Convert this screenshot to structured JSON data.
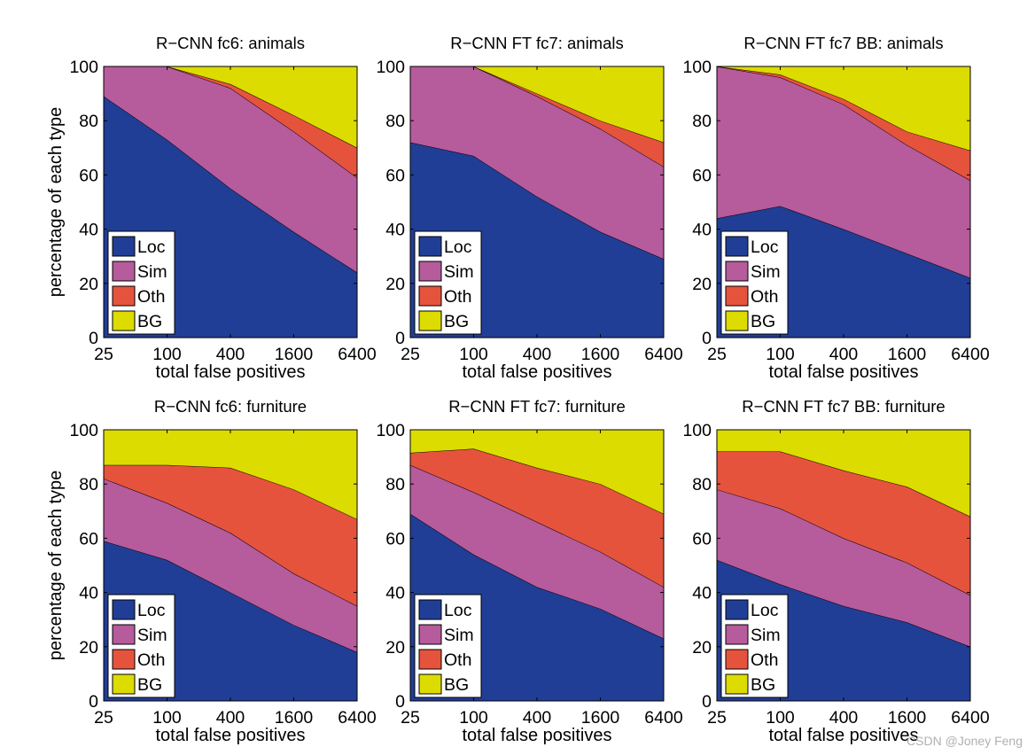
{
  "colors": {
    "Loc": "#213e96",
    "Sim": "#b65b9c",
    "Oth": "#e6533d",
    "BG": "#dcdc00"
  },
  "chart_data": [
    {
      "type": "area",
      "title": "R−CNN fc6: animals",
      "xlabel": "total false positives",
      "ylabel": "percentage of each type",
      "categories": [
        "25",
        "100",
        "400",
        "1600",
        "6400"
      ],
      "ylim": [
        0,
        100
      ],
      "yticks": [
        "0",
        "20",
        "40",
        "60",
        "80",
        "100"
      ],
      "legend_position": "bottom-left",
      "stacked": true,
      "series": [
        {
          "name": "Loc",
          "values": [
            89,
            73,
            55,
            39,
            24
          ]
        },
        {
          "name": "Sim",
          "values": [
            11,
            27,
            37,
            37,
            35
          ]
        },
        {
          "name": "Oth",
          "values": [
            0,
            0,
            1.5,
            6,
            11
          ]
        },
        {
          "name": "BG",
          "values": [
            0,
            0,
            6.5,
            18,
            30
          ]
        }
      ]
    },
    {
      "type": "area",
      "title": "R−CNN FT fc7: animals",
      "xlabel": "total false positives",
      "ylabel": "",
      "categories": [
        "25",
        "100",
        "400",
        "1600",
        "6400"
      ],
      "ylim": [
        0,
        100
      ],
      "yticks": [
        "0",
        "20",
        "40",
        "60",
        "80",
        "100"
      ],
      "legend_position": "bottom-left",
      "stacked": true,
      "series": [
        {
          "name": "Loc",
          "values": [
            72,
            67,
            52,
            39,
            29
          ]
        },
        {
          "name": "Sim",
          "values": [
            28,
            33,
            37,
            38,
            34
          ]
        },
        {
          "name": "Oth",
          "values": [
            0,
            0,
            1,
            3,
            9
          ]
        },
        {
          "name": "BG",
          "values": [
            0,
            0,
            10,
            20,
            28
          ]
        }
      ]
    },
    {
      "type": "area",
      "title": "R−CNN FT fc7 BB: animals",
      "xlabel": "total false positives",
      "ylabel": "",
      "categories": [
        "25",
        "100",
        "400",
        "1600",
        "6400"
      ],
      "ylim": [
        0,
        100
      ],
      "yticks": [
        "0",
        "20",
        "40",
        "60",
        "80",
        "100"
      ],
      "legend_position": "bottom-left",
      "stacked": true,
      "series": [
        {
          "name": "Loc",
          "values": [
            44,
            48.5,
            40,
            31,
            22
          ]
        },
        {
          "name": "Sim",
          "values": [
            56,
            47.5,
            46,
            40,
            36
          ]
        },
        {
          "name": "Oth",
          "values": [
            0,
            1,
            2,
            5,
            11
          ]
        },
        {
          "name": "BG",
          "values": [
            0,
            3,
            12,
            24,
            31
          ]
        }
      ]
    },
    {
      "type": "area",
      "title": "R−CNN fc6: furniture",
      "xlabel": "total false positives",
      "ylabel": "percentage of each type",
      "categories": [
        "25",
        "100",
        "400",
        "1600",
        "6400"
      ],
      "ylim": [
        0,
        100
      ],
      "yticks": [
        "0",
        "20",
        "40",
        "60",
        "80",
        "100"
      ],
      "legend_position": "bottom-left",
      "stacked": true,
      "series": [
        {
          "name": "Loc",
          "values": [
            59,
            52,
            40,
            28,
            18
          ]
        },
        {
          "name": "Sim",
          "values": [
            23,
            21,
            22,
            19,
            17
          ]
        },
        {
          "name": "Oth",
          "values": [
            5,
            14,
            24,
            31,
            32
          ]
        },
        {
          "name": "BG",
          "values": [
            13,
            13,
            14,
            22,
            33
          ]
        }
      ]
    },
    {
      "type": "area",
      "title": "R−CNN FT fc7: furniture",
      "xlabel": "total false positives",
      "ylabel": "",
      "categories": [
        "25",
        "100",
        "400",
        "1600",
        "6400"
      ],
      "ylim": [
        0,
        100
      ],
      "yticks": [
        "0",
        "20",
        "40",
        "60",
        "80",
        "100"
      ],
      "legend_position": "bottom-left",
      "stacked": true,
      "series": [
        {
          "name": "Loc",
          "values": [
            69,
            54,
            42,
            34,
            23
          ]
        },
        {
          "name": "Sim",
          "values": [
            18,
            23,
            24,
            21,
            19
          ]
        },
        {
          "name": "Oth",
          "values": [
            4.5,
            16,
            20,
            25,
            27
          ]
        },
        {
          "name": "BG",
          "values": [
            8.5,
            7,
            14,
            20,
            31
          ]
        }
      ]
    },
    {
      "type": "area",
      "title": "R−CNN FT fc7 BB: furniture",
      "xlabel": "total false positives",
      "ylabel": "",
      "categories": [
        "25",
        "100",
        "400",
        "1600",
        "6400"
      ],
      "ylim": [
        0,
        100
      ],
      "yticks": [
        "0",
        "20",
        "40",
        "60",
        "80",
        "100"
      ],
      "legend_position": "bottom-left",
      "stacked": true,
      "series": [
        {
          "name": "Loc",
          "values": [
            52,
            43,
            35,
            29,
            20
          ]
        },
        {
          "name": "Sim",
          "values": [
            26,
            28,
            25,
            22,
            19
          ]
        },
        {
          "name": "Oth",
          "values": [
            14,
            21,
            25,
            28,
            29
          ]
        },
        {
          "name": "BG",
          "values": [
            8,
            8,
            15,
            21,
            32
          ]
        }
      ]
    }
  ],
  "watermark": "CSDN @Joney Feng"
}
